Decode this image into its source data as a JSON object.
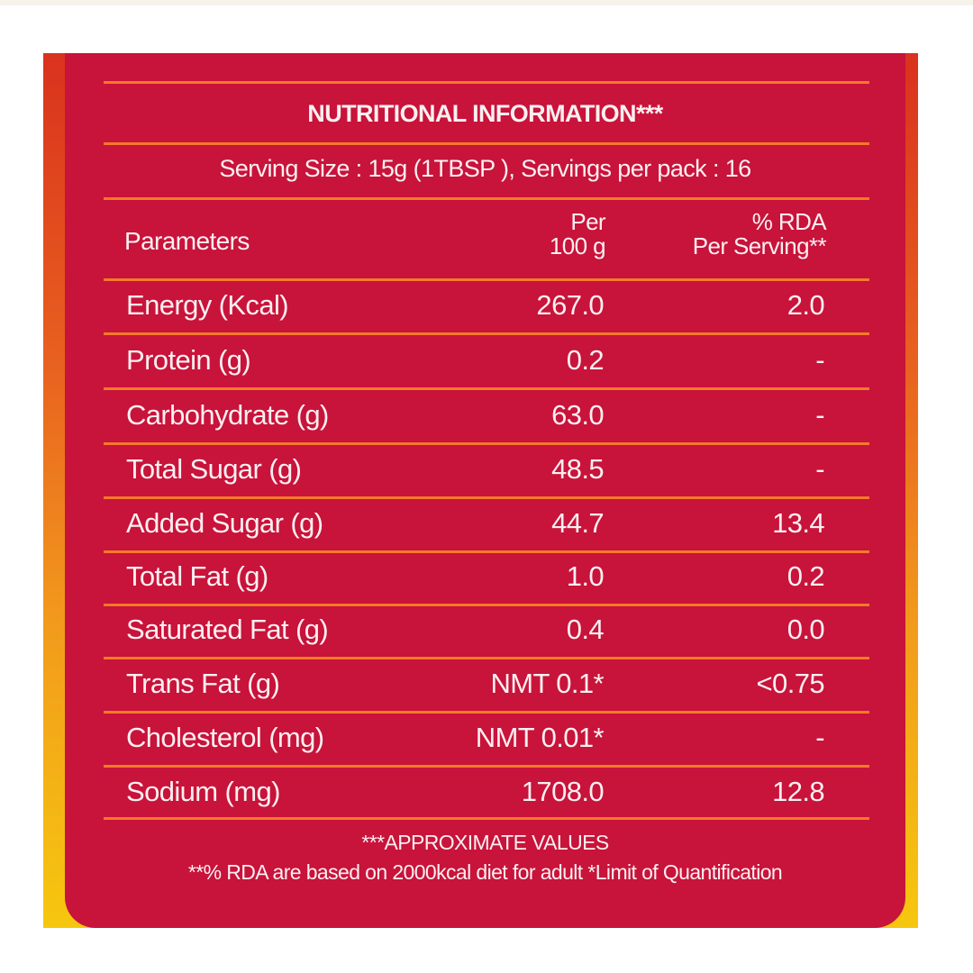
{
  "title": "NUTRITIONAL INFORMATION***",
  "serving": "Serving Size : 15g (1TBSP ),  Servings per pack : 16",
  "headers": {
    "parameters": "Parameters",
    "per100_line1": "Per",
    "per100_line2": "100 g",
    "rda_line1": "% RDA",
    "rda_line2": "Per Serving**"
  },
  "rows": [
    {
      "param": "Energy (Kcal)",
      "per100": "267.0",
      "rda": "2.0"
    },
    {
      "param": "Protein (g)",
      "per100": "0.2",
      "rda": "-"
    },
    {
      "param": "Carbohydrate (g)",
      "per100": "63.0",
      "rda": "-"
    },
    {
      "param": "Total Sugar (g)",
      "per100": "48.5",
      "rda": "-"
    },
    {
      "param": "Added Sugar (g)",
      "per100": "44.7",
      "rda": "13.4"
    },
    {
      "param": "Total Fat (g)",
      "per100": "1.0",
      "rda": "0.2"
    },
    {
      "param": "Saturated Fat (g)",
      "per100": "0.4",
      "rda": "0.0"
    },
    {
      "param": "Trans Fat (g)",
      "per100": "NMT 0.1*",
      "rda": "<0.75"
    },
    {
      "param": "Cholesterol (mg)",
      "per100": "NMT 0.01*",
      "rda": "-"
    },
    {
      "param": "Sodium (mg)",
      "per100": "1708.0",
      "rda": "12.8"
    }
  ],
  "footnotes": [
    "***APPROXIMATE VALUES",
    "**% RDA are based on 2000kcal diet for adult *Limit of Quantification"
  ],
  "colors": {
    "card": "#c8133a",
    "rule": "#f47a2a",
    "text": "#fbeff1"
  }
}
